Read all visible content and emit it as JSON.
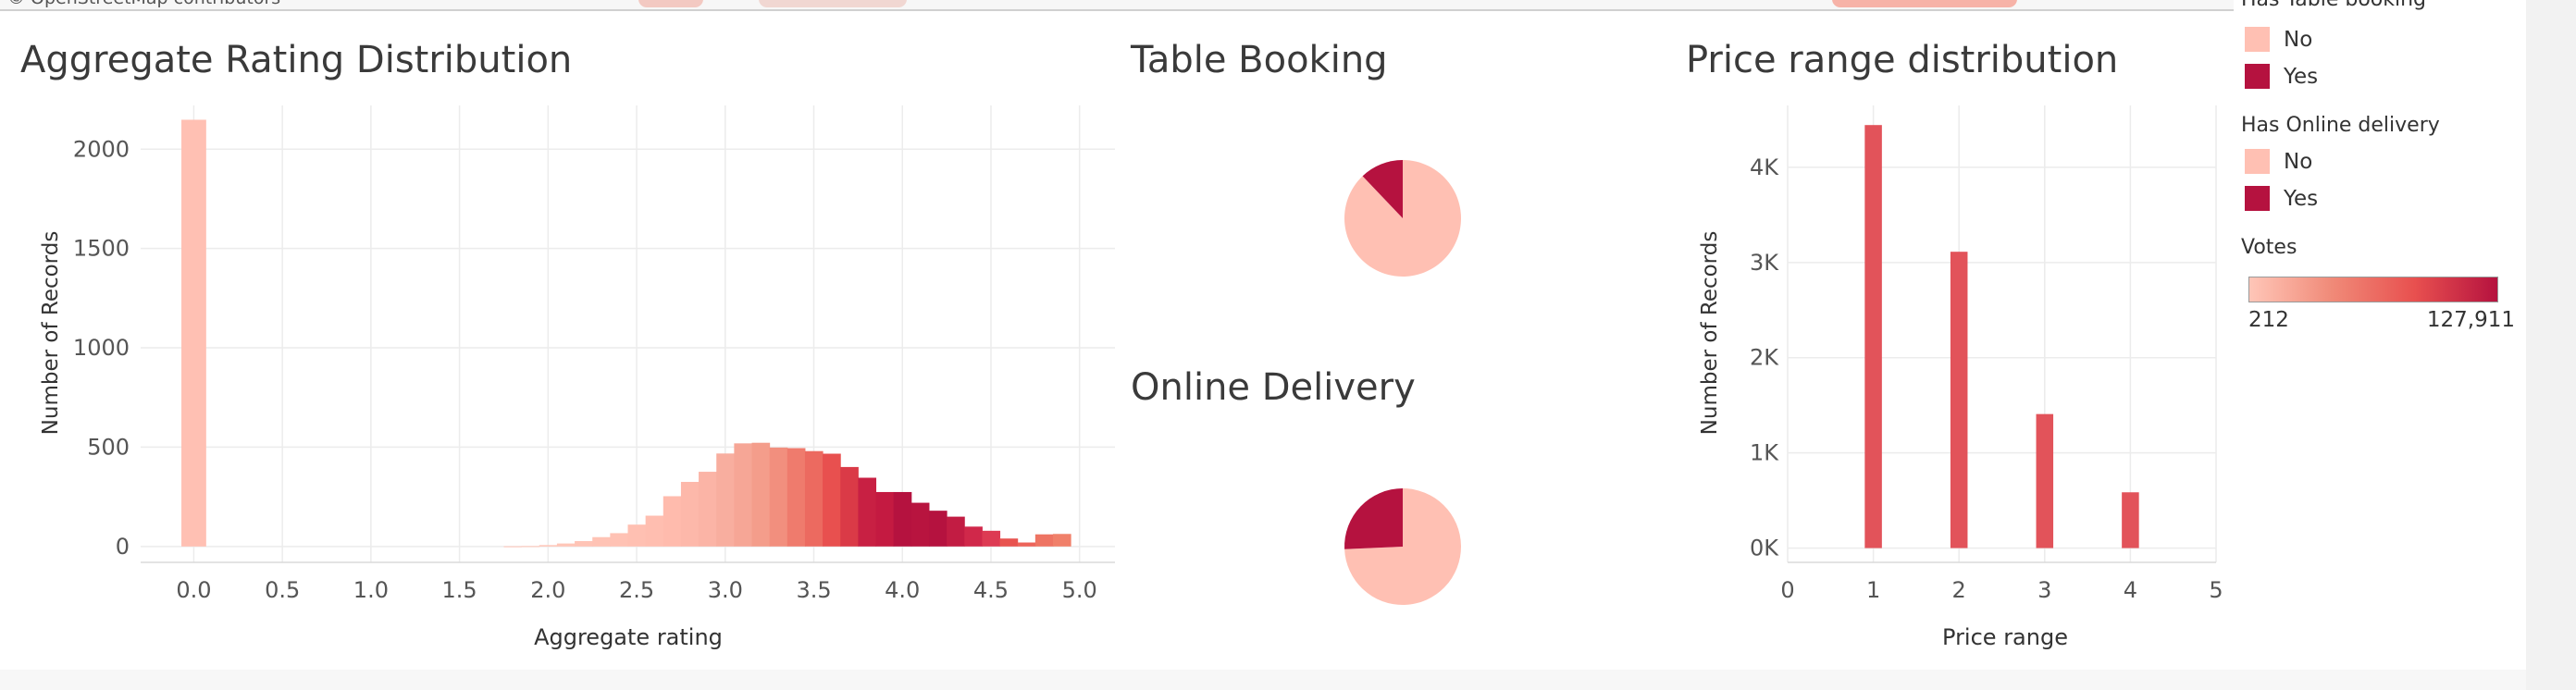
{
  "map_strip": {
    "credit": "© OpenStreetMap contributors"
  },
  "legend": {
    "table_booking_title": "Has Table booking",
    "online_delivery_title": "Has Online delivery",
    "items_no": "No",
    "items_yes": "Yes",
    "no_color": "#FFC0B3",
    "yes_color": "#B5123F",
    "votes_title": "Votes",
    "votes_min": "212",
    "votes_max": "127,911",
    "gradient_colors": [
      "#FFC6B8",
      "#F08A78",
      "#E8504F",
      "#B5123F"
    ]
  },
  "chart_data": [
    {
      "type": "bar",
      "title": "Aggregate Rating Distribution",
      "xlabel": "Aggregate rating",
      "ylabel": "Number of Records",
      "xlim": [
        -0.3,
        5.2
      ],
      "ylim": [
        -80,
        2220
      ],
      "x_ticks": [
        "0.0",
        "0.5",
        "1.0",
        "1.5",
        "2.0",
        "2.5",
        "3.0",
        "3.5",
        "4.0",
        "4.5",
        "5.0"
      ],
      "y_ticks": [
        "0",
        "500",
        "1000",
        "1500",
        "2000"
      ],
      "grid": true,
      "color_encoding": "Votes (sum)",
      "x": [
        0.0,
        1.8,
        1.9,
        2.0,
        2.1,
        2.2,
        2.3,
        2.4,
        2.5,
        2.6,
        2.7,
        2.8,
        2.9,
        3.0,
        3.1,
        3.2,
        3.3,
        3.4,
        3.5,
        3.6,
        3.7,
        3.8,
        3.9,
        4.0,
        4.1,
        4.2,
        4.3,
        4.4,
        4.5,
        4.6,
        4.7,
        4.8,
        4.9
      ],
      "values": [
        2148,
        1,
        2,
        7,
        15,
        27,
        47,
        67,
        110,
        155,
        253,
        325,
        376,
        468,
        519,
        522,
        498,
        495,
        480,
        467,
        400,
        346,
        274,
        274,
        220,
        180,
        150,
        100,
        79,
        40,
        20,
        61,
        63
      ],
      "bar_colors": [
        "#FFC0B3",
        "#FFC6B8",
        "#FFC6B8",
        "#FFC6B8",
        "#FFC6B8",
        "#FFC4B6",
        "#FFC3B5",
        "#FFC2B4",
        "#FFC0B2",
        "#FFBEB0",
        "#FFBBAD",
        "#FDB8AA",
        "#FBB4A6",
        "#F8AE9F",
        "#F6A696",
        "#F49D8B",
        "#F28F7E",
        "#EF7B6D",
        "#EC6A60",
        "#E8504F",
        "#DA3A47",
        "#C82043",
        "#C41A41",
        "#B5123F",
        "#B8143F",
        "#B5123F",
        "#C21C43",
        "#D0284A",
        "#DD3A53",
        "#E8534F",
        "#EC645A",
        "#EE7463",
        "#F0806A"
      ]
    },
    {
      "type": "pie",
      "title": "Table Booking",
      "slices": [
        {
          "label": "No",
          "value": 87.9,
          "color": "#FFC0B3"
        },
        {
          "label": "Yes",
          "value": 12.1,
          "color": "#B5123F"
        }
      ]
    },
    {
      "type": "pie",
      "title": "Online Delivery",
      "slices": [
        {
          "label": "No",
          "value": 74.3,
          "color": "#FFC0B3"
        },
        {
          "label": "Yes",
          "value": 25.7,
          "color": "#B5123F"
        }
      ]
    },
    {
      "type": "bar",
      "title": "Price range distribution",
      "xlabel": "Price range",
      "ylabel": "Number of Records",
      "xlim": [
        0,
        5
      ],
      "ylim": [
        -150,
        4650
      ],
      "x_ticks": [
        "0",
        "1",
        "2",
        "3",
        "4",
        "5"
      ],
      "y_ticks": [
        "0K",
        "1K",
        "2K",
        "3K",
        "4K"
      ],
      "grid": true,
      "x": [
        1,
        2,
        3,
        4
      ],
      "values": [
        4444,
        3113,
        1408,
        586
      ],
      "bar_color": "#E2535A"
    }
  ]
}
